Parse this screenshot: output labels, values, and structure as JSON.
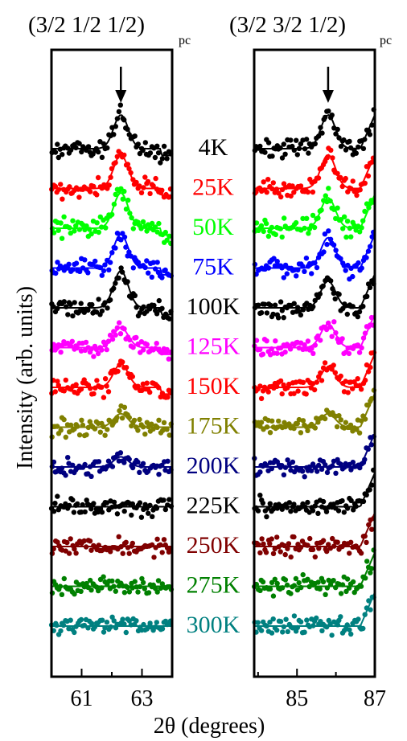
{
  "chart_data": [
    {
      "type": "scatter",
      "title": "(3/2 1/2 1/2)",
      "title_subscript": "pc",
      "xlim": [
        60.0,
        64.0
      ],
      "xticks": [
        61,
        63
      ],
      "peak_x": 62.3,
      "arrow_at": 62.3
    },
    {
      "type": "scatter",
      "title": "(3/2 3/2 1/2)",
      "title_subscript": "pc",
      "xlim": [
        83.9,
        87.0
      ],
      "xticks": [
        85,
        87
      ],
      "peak_x": 85.8,
      "arrow_at": 85.8
    }
  ],
  "xlabel": "2θ (degrees)",
  "ylabel": "Intensity (arb. units)",
  "temperatures": [
    {
      "label": "4K",
      "color": "#000000",
      "peak_left": 1.0,
      "peak_right": 1.0
    },
    {
      "label": "25K",
      "color": "#ff0000",
      "peak_left": 1.0,
      "peak_right": 1.0
    },
    {
      "label": "50K",
      "color": "#00ff00",
      "peak_left": 1.05,
      "peak_right": 0.9
    },
    {
      "label": "75K",
      "color": "#0000ff",
      "peak_left": 1.0,
      "peak_right": 0.9
    },
    {
      "label": "100K",
      "color": "#000000",
      "peak_left": 1.1,
      "peak_right": 0.8
    },
    {
      "label": "125K",
      "color": "#ff00ff",
      "peak_left": 0.6,
      "peak_right": 0.7
    },
    {
      "label": "150K",
      "color": "#ff0000",
      "peak_left": 0.7,
      "peak_right": 0.6
    },
    {
      "label": "175K",
      "color": "#808000",
      "peak_left": 0.4,
      "peak_right": 0.4
    },
    {
      "label": "200K",
      "color": "#000080",
      "peak_left": 0.3,
      "peak_right": 0.0
    },
    {
      "label": "225K",
      "color": "#000000",
      "peak_left": 0.0,
      "peak_right": 0.0
    },
    {
      "label": "250K",
      "color": "#800000",
      "peak_left": 0.0,
      "peak_right": 0.0
    },
    {
      "label": "275K",
      "color": "#008000",
      "peak_left": 0.0,
      "peak_right": 0.0
    },
    {
      "label": "300K",
      "color": "#008080",
      "peak_left": 0.0,
      "peak_right": 0.0
    }
  ]
}
